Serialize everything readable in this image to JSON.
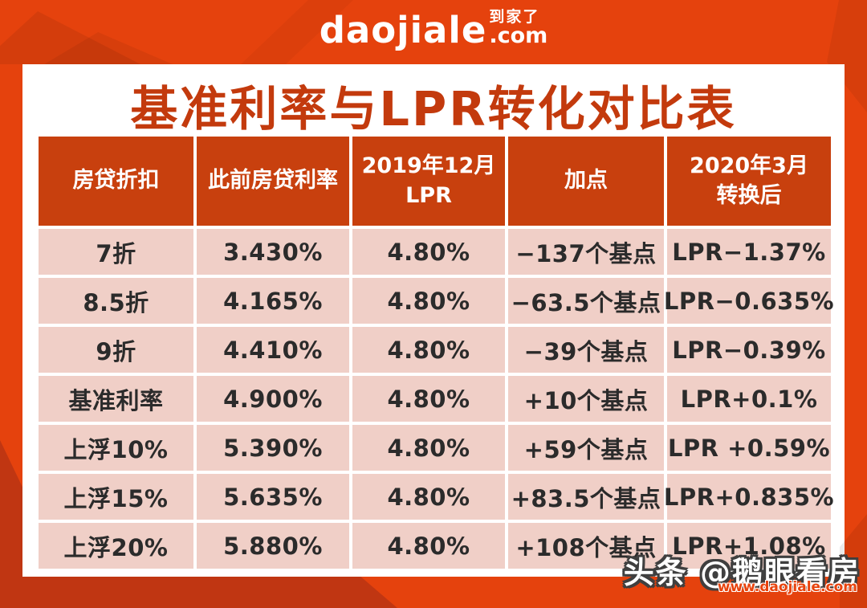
{
  "brand": {
    "logo_main": "daojiale",
    "logo_cn": "到家了",
    "logo_suffix": ".com"
  },
  "title": "基准利率与LPR转化对比表",
  "chart_data": {
    "type": "table",
    "title": "基准利率与LPR转化对比表",
    "columns": [
      "房贷折扣",
      "此前房贷利率",
      "2019年12月\nLPR",
      "加点",
      "2020年3月\n转换后"
    ],
    "rows": [
      [
        "7折",
        "3.430%",
        "4.80%",
        "−137个基点",
        "LPR−1.37%"
      ],
      [
        "8.5折",
        "4.165%",
        "4.80%",
        "−63.5个基点",
        "LPR−0.635%"
      ],
      [
        "9折",
        "4.410%",
        "4.80%",
        "−39个基点",
        "LPR−0.39%"
      ],
      [
        "基准利率",
        "4.900%",
        "4.80%",
        "+10个基点",
        "LPR+0.1%"
      ],
      [
        "上浮10%",
        "5.390%",
        "4.80%",
        "+59个基点",
        "LPR +0.59%"
      ],
      [
        "上浮15%",
        "5.635%",
        "4.80%",
        "+83.5个基点",
        "LPR+0.835%"
      ],
      [
        "上浮20%",
        "5.880%",
        "4.80%",
        "+108个基点",
        "LPR+1.08%"
      ]
    ]
  },
  "watermark": {
    "account": "头条 @鹅眼看房",
    "site": "www.daojiale.com"
  },
  "colors": {
    "background": "#E5420D",
    "header_bg": "#C8400E",
    "row_bg": "#F0CFC7",
    "dark_band": "#C03612",
    "title_text": "#C33A0D"
  }
}
